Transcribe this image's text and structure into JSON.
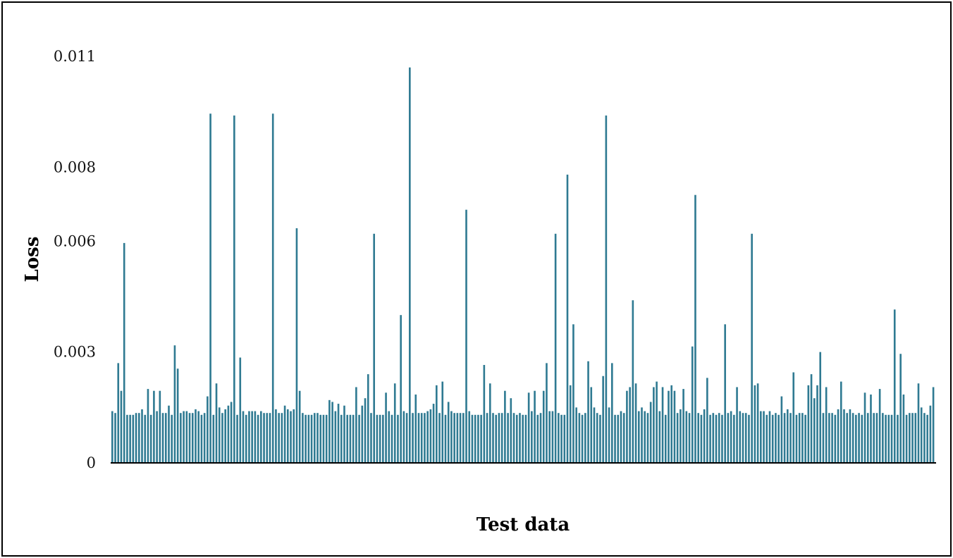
{
  "chart_data": {
    "type": "bar",
    "xlabel": "Test data",
    "ylabel": "Loss",
    "ylim": [
      0,
      0.011
    ],
    "ytick_values": [
      0,
      0.003,
      0.006,
      0.008,
      0.011
    ],
    "yticks": [
      "0",
      "0.003",
      "0.006",
      "0.008",
      "0.011"
    ],
    "grid": false,
    "bar_color": "#2F7A92",
    "values": [
      0.0014,
      0.00135,
      0.0027,
      0.00195,
      0.00595,
      0.0013,
      0.0013,
      0.0013,
      0.00135,
      0.00135,
      0.00145,
      0.0013,
      0.002,
      0.0013,
      0.00195,
      0.0014,
      0.00195,
      0.00135,
      0.00135,
      0.00155,
      0.0013,
      0.00318,
      0.00255,
      0.00135,
      0.0014,
      0.0014,
      0.00135,
      0.00135,
      0.00145,
      0.0014,
      0.0013,
      0.00135,
      0.0018,
      0.00945,
      0.0013,
      0.00215,
      0.0015,
      0.00135,
      0.00145,
      0.00155,
      0.00165,
      0.0094,
      0.0013,
      0.00285,
      0.0014,
      0.0013,
      0.0014,
      0.0014,
      0.0014,
      0.0013,
      0.0014,
      0.00135,
      0.00135,
      0.00135,
      0.00945,
      0.00145,
      0.00135,
      0.00135,
      0.00155,
      0.00145,
      0.0014,
      0.00145,
      0.00635,
      0.00195,
      0.00135,
      0.0013,
      0.0013,
      0.0013,
      0.00135,
      0.00135,
      0.0013,
      0.0013,
      0.0013,
      0.0017,
      0.00165,
      0.0014,
      0.0016,
      0.0013,
      0.00155,
      0.0013,
      0.0013,
      0.0013,
      0.00205,
      0.0013,
      0.00155,
      0.00175,
      0.0024,
      0.00135,
      0.0062,
      0.0013,
      0.0013,
      0.0013,
      0.0019,
      0.0014,
      0.0013,
      0.00215,
      0.0013,
      0.004,
      0.0014,
      0.00135,
      0.0107,
      0.00135,
      0.00185,
      0.00135,
      0.00135,
      0.00135,
      0.0014,
      0.00145,
      0.0016,
      0.0021,
      0.00135,
      0.0022,
      0.0013,
      0.00165,
      0.0014,
      0.00135,
      0.00135,
      0.00135,
      0.00135,
      0.00685,
      0.0014,
      0.0013,
      0.0013,
      0.0013,
      0.0013,
      0.00265,
      0.00135,
      0.00215,
      0.00135,
      0.0013,
      0.00135,
      0.00135,
      0.00195,
      0.00135,
      0.00175,
      0.00135,
      0.0013,
      0.00135,
      0.0013,
      0.0013,
      0.0019,
      0.0014,
      0.00195,
      0.0013,
      0.00135,
      0.00195,
      0.0027,
      0.0014,
      0.0014,
      0.0062,
      0.00135,
      0.0013,
      0.0013,
      0.0078,
      0.0021,
      0.00375,
      0.0015,
      0.00135,
      0.0013,
      0.00135,
      0.00275,
      0.00205,
      0.0015,
      0.00135,
      0.0013,
      0.00235,
      0.0094,
      0.0015,
      0.0027,
      0.0013,
      0.0013,
      0.0014,
      0.00135,
      0.00195,
      0.00205,
      0.0044,
      0.00215,
      0.0014,
      0.0015,
      0.0014,
      0.00135,
      0.00165,
      0.00205,
      0.0022,
      0.0014,
      0.00205,
      0.0013,
      0.00195,
      0.0021,
      0.00195,
      0.00135,
      0.00145,
      0.002,
      0.0014,
      0.00135,
      0.00315,
      0.00725,
      0.00135,
      0.0013,
      0.00145,
      0.0023,
      0.0013,
      0.00135,
      0.0013,
      0.00135,
      0.0013,
      0.00375,
      0.00135,
      0.0014,
      0.0013,
      0.00205,
      0.0014,
      0.00135,
      0.00135,
      0.0013,
      0.0062,
      0.0021,
      0.00215,
      0.0014,
      0.0014,
      0.0013,
      0.0014,
      0.0013,
      0.00135,
      0.0013,
      0.0018,
      0.00135,
      0.00145,
      0.00135,
      0.00245,
      0.0013,
      0.00135,
      0.00135,
      0.0013,
      0.0021,
      0.0024,
      0.00175,
      0.0021,
      0.003,
      0.00135,
      0.00205,
      0.00135,
      0.00135,
      0.0013,
      0.00145,
      0.0022,
      0.00145,
      0.00135,
      0.00145,
      0.00135,
      0.0013,
      0.00135,
      0.0013,
      0.0019,
      0.00135,
      0.00185,
      0.00135,
      0.00135,
      0.002,
      0.00135,
      0.0013,
      0.0013,
      0.0013,
      0.00415,
      0.0013,
      0.00295,
      0.00185,
      0.0013,
      0.00135,
      0.00135,
      0.00135,
      0.00215,
      0.0015,
      0.00135,
      0.0013,
      0.00155,
      0.00205
    ]
  }
}
